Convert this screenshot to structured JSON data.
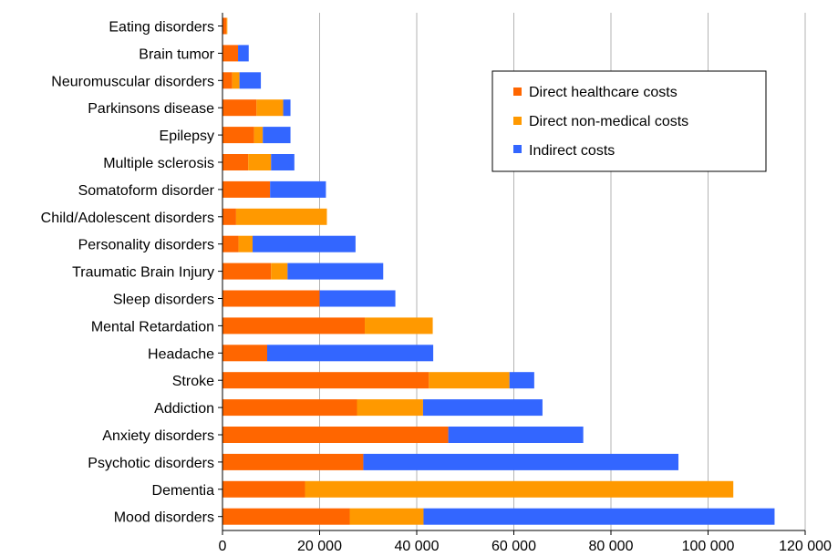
{
  "chart_data": {
    "type": "bar",
    "orientation": "horizontal",
    "stacked": true,
    "categories": [
      "Eating disorders",
      "Brain tumor",
      "Neuromuscular disorders",
      "Parkinsons disease",
      "Epilepsy",
      "Multiple sclerosis",
      "Somatoform disorder",
      "Child/Adolescent disorders",
      "Personality disorders",
      "Traumatic Brain Injury",
      "Sleep disorders",
      "Mental Retardation",
      "Headache",
      "Stroke",
      "Addiction",
      "Anxiety disorders",
      "Psychotic disorders",
      "Dementia",
      "Mood disorders"
    ],
    "series": [
      {
        "name": "Direct healthcare costs",
        "color": "#FF6600",
        "values": [
          800,
          3200,
          2000,
          7000,
          6500,
          5300,
          9800,
          2800,
          3300,
          10000,
          20000,
          29300,
          9200,
          42500,
          27700,
          46500,
          29000,
          17000,
          26200
        ]
      },
      {
        "name": "Direct non-medical costs",
        "color": "#FF9900",
        "values": [
          200,
          0,
          1500,
          5500,
          1800,
          4700,
          0,
          18700,
          2900,
          3400,
          0,
          14000,
          0,
          16600,
          13600,
          0,
          0,
          88200,
          15200
        ]
      },
      {
        "name": "Indirect costs",
        "color": "#3366FF",
        "values": [
          0,
          2200,
          4400,
          1500,
          5700,
          4800,
          11500,
          0,
          21200,
          19700,
          15600,
          0,
          34200,
          5100,
          24600,
          27800,
          64900,
          0,
          72300
        ]
      }
    ],
    "x_ticks": [
      "0",
      "20 000",
      "40 000",
      "60 000",
      "80 000",
      "100 000",
      "120 000"
    ],
    "xlim": [
      0,
      120000
    ],
    "grid": "vertical",
    "legend_position": "top-right",
    "xlabel": "",
    "ylabel": "",
    "title": ""
  }
}
